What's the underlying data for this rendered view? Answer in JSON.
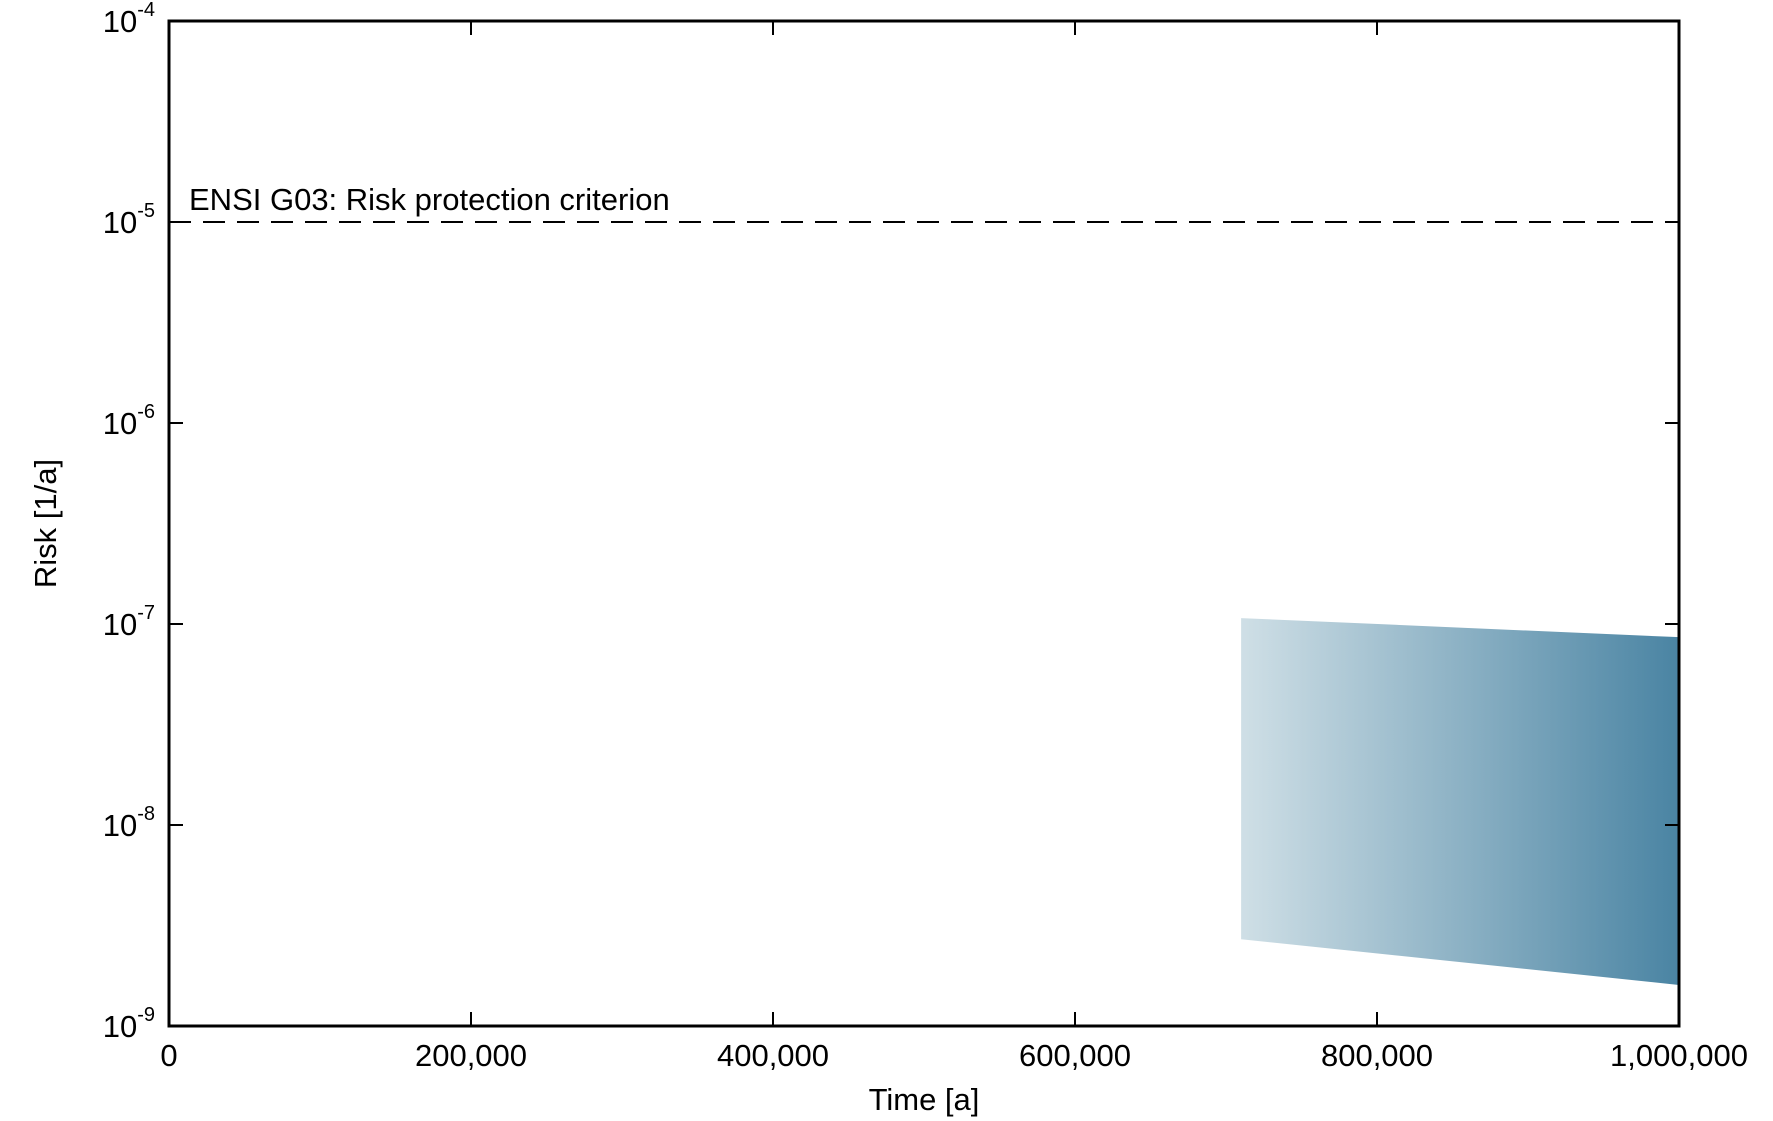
{
  "chart_data": {
    "type": "area",
    "title": "",
    "xlabel": "Time [a]",
    "ylabel": "Risk [1/a]",
    "xlim": [
      0,
      1000000
    ],
    "ylim": [
      1e-09,
      0.0001
    ],
    "yscale": "log",
    "grid": false,
    "x_ticks": [
      {
        "value": 0,
        "label": "0"
      },
      {
        "value": 200000,
        "label": "200,000"
      },
      {
        "value": 400000,
        "label": "400,000"
      },
      {
        "value": 600000,
        "label": "600,000"
      },
      {
        "value": 800000,
        "label": "800,000"
      },
      {
        "value": 1000000,
        "label": "1,000,000"
      }
    ],
    "y_ticks": [
      {
        "value": 1e-09,
        "base": "10",
        "exp": "-9"
      },
      {
        "value": 1e-08,
        "base": "10",
        "exp": "-8"
      },
      {
        "value": 1e-07,
        "base": "10",
        "exp": "-7"
      },
      {
        "value": 1e-06,
        "base": "10",
        "exp": "-6"
      },
      {
        "value": 1e-05,
        "base": "10",
        "exp": "-5"
      },
      {
        "value": 0.0001,
        "base": "10",
        "exp": "-4"
      }
    ],
    "reference_line": {
      "y": 1e-05,
      "style": "dashed",
      "color": "#000000",
      "label": "ENSI G03: Risk protection criterion"
    },
    "band": {
      "x": [
        710000,
        1000000
      ],
      "upper": [
        1.07e-07,
        8.6e-08
      ],
      "lower": [
        2.7e-09,
        1.6e-09
      ],
      "color_start": "#cfdfe6",
      "color_end": "#4a84a3"
    }
  }
}
